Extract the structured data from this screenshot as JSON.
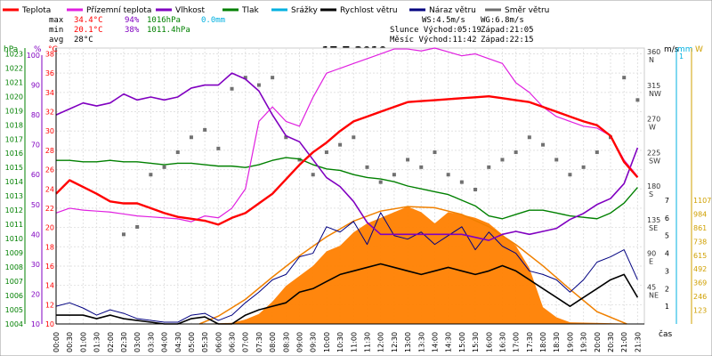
{
  "chart_data": {
    "type": "line",
    "title": "17.7.2010",
    "xlabel": "čas",
    "legend": [
      {
        "name": "Teplota",
        "color": "#ff0000"
      },
      {
        "name": "Přízemní teplota",
        "color": "#e020e0"
      },
      {
        "name": "Vlhkost",
        "color": "#8000c0"
      },
      {
        "name": "Tlak",
        "color": "#008000"
      },
      {
        "name": "Srážky",
        "color": "#00b0e0"
      },
      {
        "name": "Rychlost větru",
        "color": "#000000"
      },
      {
        "name": "Náraz větru",
        "color": "#000080"
      },
      {
        "name": "Směr větru",
        "color": "#707070"
      }
    ],
    "stats": {
      "max": {
        "label": "max",
        "temp": "34.4°C",
        "hum": "94%",
        "press": "1016hPa",
        "rain": "0.0mm"
      },
      "min": {
        "label": "min",
        "temp": "20.1°C",
        "hum": "38%",
        "press": "1011.4hPa"
      },
      "avg": {
        "label": "avg",
        "temp": "28°C"
      }
    },
    "info": {
      "ws": "WS:4.5m/s",
      "wg": "WG:6.8m/s",
      "sun": "Slunce Východ:05:19",
      "sun_set": "Západ:21:05",
      "moon": "Měsíc Východ:11:42",
      "moon_set": "Západ:22:15"
    },
    "axis_units": {
      "hpa": "hPa",
      "pct": "%",
      "deg": "°C",
      "ms": "m/s",
      "mm": "mm",
      "w": "W"
    },
    "x_ticks": [
      "00:00",
      "00:30",
      "01:00",
      "01:30",
      "02:00",
      "02:30",
      "03:00",
      "03:30",
      "04:00",
      "04:30",
      "05:00",
      "05:30",
      "06:00",
      "06:30",
      "07:00",
      "07:30",
      "08:00",
      "08:30",
      "09:00",
      "09:30",
      "10:00",
      "10:30",
      "11:00",
      "11:30",
      "12:00",
      "12:30",
      "13:00",
      "13:30",
      "14:00",
      "14:30",
      "15:00",
      "15:30",
      "16:00",
      "16:30",
      "17:00",
      "17:30",
      "18:00",
      "18:30",
      "19:00",
      "19:30",
      "20:00",
      "20:30",
      "21:00",
      "21:30"
    ],
    "pressure_ticks": [
      "1023",
      "1022",
      "1021",
      "1020",
      "1019",
      "1018",
      "1017",
      "1016",
      "1015",
      "1014",
      "1013",
      "1012",
      "1011",
      "1010",
      "1009",
      "1008",
      "1007",
      "1006",
      "1005",
      "1004"
    ],
    "humidity_ticks": [
      "100",
      "90",
      "80",
      "70",
      "60",
      "50",
      "40",
      "30",
      "20",
      "10"
    ],
    "temp_ticks": [
      "38",
      "36",
      "34",
      "32",
      "30",
      "28",
      "26",
      "24",
      "22",
      "20",
      "18",
      "16",
      "14",
      "12",
      "10"
    ],
    "wind_dir_ticks": [
      "360",
      "315",
      "270",
      "225",
      "180",
      "135",
      "90",
      "45"
    ],
    "wind_dir_labels": [
      "N",
      "NW",
      "W",
      "SW",
      "S",
      "SE",
      "E",
      "NE"
    ],
    "wind_speed_ticks": [
      "7",
      "6",
      "5",
      "4",
      "3",
      "2",
      "1"
    ],
    "rain_ticks": [
      "1"
    ],
    "solar_ticks": [
      "1107",
      "984",
      "861",
      "738",
      "615",
      "492",
      "369",
      "246",
      "123"
    ],
    "ranges": {
      "hours": [
        0,
        21.75
      ],
      "pressure": [
        1004,
        1023.4
      ],
      "humidity": [
        10,
        100
      ],
      "temp": [
        10,
        38.6
      ],
      "wind_dir": [
        0,
        360
      ],
      "wind_speed": [
        0,
        7
      ],
      "solar": [
        0,
        1107
      ]
    },
    "series": {
      "temp": {
        "x": [
          0,
          0.5,
          1,
          1.5,
          2,
          2.5,
          3,
          3.5,
          4,
          4.5,
          5,
          5.5,
          6,
          6.5,
          7,
          7.5,
          8,
          8.5,
          9,
          9.5,
          10,
          10.5,
          11,
          11.5,
          12,
          12.5,
          13,
          13.5,
          14,
          14.5,
          15,
          15.5,
          16,
          16.5,
          17,
          17.5,
          18,
          18.5,
          19,
          19.5,
          20,
          20.5,
          21,
          21.5
        ],
        "y": [
          23.5,
          24.9,
          24.2,
          23.5,
          22.7,
          22.5,
          22.5,
          22.0,
          21.5,
          21.1,
          20.9,
          20.7,
          20.3,
          21.0,
          21.5,
          22.5,
          23.5,
          25.0,
          26.5,
          27.8,
          28.8,
          30.0,
          31.0,
          31.5,
          32.0,
          32.5,
          33.0,
          33.1,
          33.2,
          33.3,
          33.4,
          33.5,
          33.6,
          33.4,
          33.2,
          33.0,
          32.5,
          32.0,
          31.5,
          31.0,
          30.6,
          29.5,
          26.8,
          25.2
        ]
      },
      "ground": {
        "x": [
          0,
          0.5,
          1,
          1.5,
          2,
          2.5,
          3,
          3.5,
          4,
          4.5,
          5,
          5.5,
          6,
          6.5,
          7,
          7.5,
          8,
          8.5,
          9,
          9.5,
          10,
          10.5,
          11,
          11.5,
          12,
          12.5,
          13,
          13.5,
          14,
          14.5,
          15,
          15.5,
          16,
          16.5,
          17,
          17.5,
          18,
          18.5,
          19,
          19.5,
          20,
          20.5,
          21,
          21.5
        ],
        "y": [
          21.5,
          22.0,
          21.8,
          21.7,
          21.6,
          21.4,
          21.2,
          21.1,
          21.0,
          20.9,
          20.6,
          21.2,
          21.0,
          22.0,
          24.0,
          31.0,
          32.5,
          31.0,
          30.5,
          33.5,
          36.0,
          36.5,
          37.0,
          37.5,
          38.0,
          38.5,
          38.5,
          38.3,
          38.6,
          38.2,
          37.8,
          38.0,
          37.5,
          37.0,
          35.0,
          34.0,
          32.5,
          31.5,
          31.0,
          30.5,
          30.3,
          29.5,
          27.0,
          25.3
        ]
      },
      "humidity": {
        "x": [
          0,
          0.5,
          1,
          1.5,
          2,
          2.5,
          3,
          3.5,
          4,
          4.5,
          5,
          5.5,
          6,
          6.5,
          7,
          7.5,
          8,
          8.5,
          9,
          9.5,
          10,
          10.5,
          11,
          11.5,
          12,
          12.5,
          13,
          13.5,
          14,
          14.5,
          15,
          15.5,
          16,
          16.5,
          17,
          17.5,
          18,
          18.5,
          19,
          19.5,
          20,
          20.5,
          21,
          21.5
        ],
        "y": [
          80,
          82,
          84,
          83,
          84,
          87,
          85,
          86,
          85,
          86,
          89,
          90,
          90,
          94,
          92,
          88,
          80,
          73,
          71,
          65,
          59,
          56,
          51,
          44,
          40,
          40,
          40,
          40,
          40,
          40,
          40,
          39,
          38,
          40,
          41,
          40,
          41,
          42,
          45,
          47,
          50,
          52,
          57,
          69
        ]
      },
      "pressure": {
        "x": [
          0,
          0.5,
          1,
          1.5,
          2,
          2.5,
          3,
          3.5,
          4,
          4.5,
          5,
          5.5,
          6,
          6.5,
          7,
          7.5,
          8,
          8.5,
          9,
          9.5,
          10,
          10.5,
          11,
          11.5,
          12,
          12.5,
          13,
          13.5,
          14,
          14.5,
          15,
          15.5,
          16,
          16.5,
          17,
          17.5,
          18,
          18.5,
          19,
          19.5,
          20,
          20.5,
          21,
          21.5
        ],
        "y": [
          1015.5,
          1015.5,
          1015.4,
          1015.4,
          1015.5,
          1015.4,
          1015.4,
          1015.3,
          1015.2,
          1015.3,
          1015.3,
          1015.2,
          1015.1,
          1015.1,
          1015.0,
          1015.2,
          1015.5,
          1015.7,
          1015.6,
          1015.2,
          1014.9,
          1014.8,
          1014.5,
          1014.3,
          1014.2,
          1014.0,
          1013.7,
          1013.5,
          1013.3,
          1013.1,
          1012.7,
          1012.3,
          1011.6,
          1011.4,
          1011.7,
          1012.0,
          1012.0,
          1011.8,
          1011.6,
          1011.5,
          1011.4,
          1011.8,
          1012.5,
          1013.6
        ]
      },
      "wind_speed": {
        "x": [
          0,
          0.5,
          1,
          1.5,
          2,
          2.5,
          3,
          3.5,
          4,
          4.5,
          5,
          5.5,
          6,
          6.5,
          7,
          7.5,
          8,
          8.5,
          9,
          9.5,
          10,
          10.5,
          11,
          11.5,
          12,
          12.5,
          13,
          13.5,
          14,
          14.5,
          15,
          15.5,
          16,
          16.5,
          17,
          17.5,
          18,
          18.5,
          19,
          19.5,
          20,
          20.5,
          21,
          21.5
        ],
        "y": [
          0.5,
          0.5,
          0.5,
          0.3,
          0.5,
          0.3,
          0.2,
          0.1,
          0,
          0,
          0.3,
          0.4,
          0,
          0,
          0.5,
          0.8,
          1.0,
          1.2,
          1.8,
          2.0,
          2.4,
          2.8,
          3.0,
          3.2,
          3.4,
          3.2,
          3.0,
          2.8,
          3.0,
          3.2,
          3.0,
          2.8,
          3.0,
          3.3,
          3.0,
          2.5,
          2.0,
          1.5,
          1.0,
          1.5,
          2.0,
          2.5,
          2.8,
          1.5
        ]
      },
      "wind_gust": {
        "x": [
          0,
          0.5,
          1,
          1.5,
          2,
          2.5,
          3,
          3.5,
          4,
          4.5,
          5,
          5.5,
          6,
          6.5,
          7,
          7.5,
          8,
          8.5,
          9,
          9.5,
          10,
          10.5,
          11,
          11.5,
          12,
          12.5,
          13,
          13.5,
          14,
          14.5,
          15,
          15.5,
          16,
          16.5,
          17,
          17.5,
          18,
          18.5,
          19,
          19.5,
          20,
          20.5,
          21,
          21.5
        ],
        "y": [
          1.0,
          1.2,
          0.9,
          0.5,
          0.8,
          0.6,
          0.3,
          0.2,
          0.1,
          0.1,
          0.5,
          0.6,
          0.2,
          0.5,
          1.2,
          1.8,
          2.5,
          2.8,
          3.8,
          4.0,
          5.5,
          5.2,
          5.8,
          4.5,
          6.3,
          5.0,
          4.8,
          5.2,
          4.5,
          5.0,
          5.5,
          4.2,
          5.2,
          4.4,
          4.0,
          3.0,
          2.8,
          2.5,
          1.8,
          2.5,
          3.5,
          3.8,
          4.2,
          2.5
        ]
      },
      "wind_dir": {
        "x": [
          2.5,
          3,
          3.5,
          4,
          4.5,
          5,
          5.5,
          6,
          6.5,
          7,
          7.5,
          8,
          8.5,
          9,
          9.5,
          10,
          10.5,
          11,
          11.5,
          12,
          12.5,
          13,
          13.5,
          14,
          14.5,
          15,
          15.5,
          16,
          16.5,
          17,
          17.5,
          18,
          18.5,
          19,
          19.5,
          20,
          20.5,
          21,
          21.5
        ],
        "y": [
          120,
          130,
          200,
          210,
          230,
          250,
          260,
          235,
          315,
          330,
          320,
          330,
          250,
          220,
          200,
          230,
          240,
          250,
          210,
          190,
          200,
          220,
          210,
          230,
          200,
          190,
          180,
          210,
          220,
          230,
          250,
          240,
          220,
          200,
          210,
          230,
          250,
          330,
          300
        ]
      },
      "solar": {
        "x": [
          0,
          5.3,
          6.5,
          7,
          7.5,
          8,
          8.5,
          9,
          9.5,
          10,
          10.5,
          11,
          11.5,
          12,
          12.5,
          13,
          13.5,
          14,
          14.5,
          15,
          15.5,
          16,
          16.5,
          17,
          17.5,
          18,
          18.5,
          19,
          21.75
        ],
        "y": [
          0,
          0,
          10,
          40,
          90,
          200,
          340,
          430,
          520,
          650,
          700,
          820,
          900,
          950,
          1000,
          1050,
          1000,
          900,
          1000,
          980,
          950,
          900,
          800,
          700,
          500,
          150,
          60,
          15,
          0
        ]
      },
      "clear_sky": {
        "x": [
          5.3,
          6,
          7,
          8,
          9,
          10,
          11,
          12,
          13,
          14,
          15,
          16,
          17,
          18,
          19,
          20,
          21.1
        ],
        "y": [
          0,
          70,
          220,
          420,
          610,
          780,
          920,
          1010,
          1050,
          1040,
          980,
          870,
          710,
          520,
          310,
          110,
          0
        ]
      }
    },
    "colors": {
      "temp": "#ff0000",
      "ground": "#e020e0",
      "humidity": "#8000c0",
      "pressure": "#008000",
      "rain": "#00b0e0",
      "wind_speed": "#000000",
      "wind_gust": "#000080",
      "wind_dir": "#707070",
      "solar": "#ff8000",
      "clear_sky": "#f08000"
    }
  }
}
